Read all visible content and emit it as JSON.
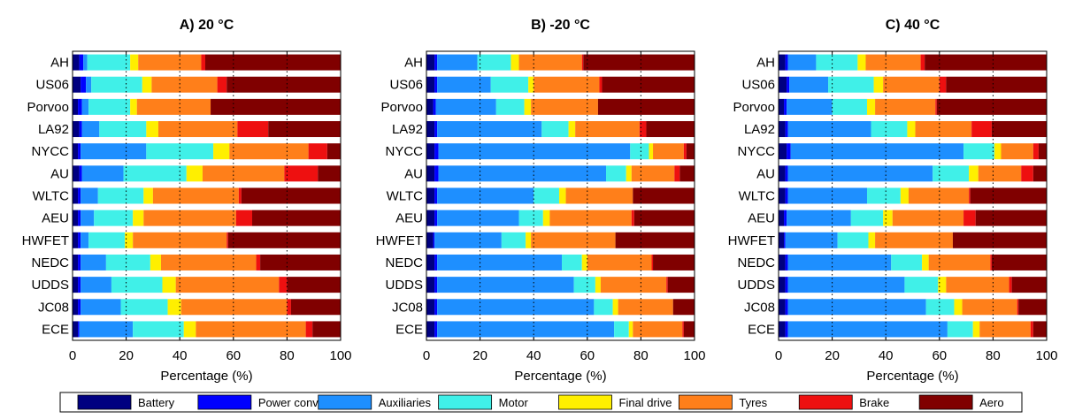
{
  "chart_data": {
    "type": "bar",
    "orientation": "horizontal",
    "stacked": true,
    "xlim": [
      0,
      100
    ],
    "xticks": [
      0,
      20,
      40,
      60,
      80,
      100
    ],
    "xgrid": "dotted",
    "xlabel": "Percentage (%)",
    "categories": [
      "AH",
      "US06",
      "Porvoo",
      "LA92",
      "NYCC",
      "AU",
      "WLTC",
      "AEU",
      "HWFET",
      "NEDC",
      "UDDS",
      "JC08",
      "ECE"
    ],
    "legend": {
      "placement": "bottom",
      "entries": [
        {
          "name": "Battery",
          "color": "#000080"
        },
        {
          "name": "Power converter",
          "color": "#0000ff"
        },
        {
          "name": "Auxiliaries",
          "color": "#1e8fff"
        },
        {
          "name": "Motor",
          "color": "#40f0e8"
        },
        {
          "name": "Final drive",
          "color": "#ffef00"
        },
        {
          "name": "Tyres",
          "color": "#ff7f1a"
        },
        {
          "name": "Brake",
          "color": "#ee1010"
        },
        {
          "name": "Aero",
          "color": "#800000"
        }
      ]
    },
    "panels": [
      {
        "title": "A) 20 °C",
        "values": [
          [
            2.5,
            1.5,
            1.5,
            16,
            3,
            23.5,
            1.5,
            50.5
          ],
          [
            3,
            2,
            2,
            19,
            3.5,
            24.5,
            3.5,
            42.5
          ],
          [
            2,
            1.5,
            2.5,
            15.5,
            2.5,
            27.5,
            0,
            48.5
          ],
          [
            2.5,
            1,
            6.5,
            17.5,
            4.5,
            29.5,
            11.5,
            27
          ],
          [
            2,
            1,
            24.5,
            25,
            6,
            29.5,
            7,
            5
          ],
          [
            2.5,
            1,
            15.5,
            23.5,
            6,
            30.5,
            12.5,
            8.5
          ],
          [
            2,
            1,
            6.5,
            17,
            3.5,
            32,
            1,
            37
          ],
          [
            2,
            1,
            5,
            14.5,
            4,
            34.5,
            6,
            33
          ],
          [
            2,
            1,
            3,
            13.5,
            3,
            35,
            0.5,
            42
          ],
          [
            2,
            1,
            9.5,
            16.5,
            4,
            35.5,
            1.5,
            30
          ],
          [
            2,
            1,
            11.5,
            19,
            5,
            38.5,
            3,
            20
          ],
          [
            2,
            1,
            15,
            17.5,
            5,
            39.5,
            1.5,
            18.5
          ],
          [
            2,
            0.5,
            20,
            19,
            4.5,
            41,
            2.5,
            10.5
          ]
        ]
      },
      {
        "title": "B) -20 °C",
        "values": [
          [
            3,
            1,
            15,
            12.5,
            3,
            23.5,
            0.5,
            41.5
          ],
          [
            3,
            1,
            20,
            14,
            2,
            24.5,
            1,
            34.5
          ],
          [
            2.5,
            1,
            22.5,
            10.5,
            2.5,
            25,
            0,
            36
          ],
          [
            3,
            1,
            39,
            10,
            2.5,
            24,
            2.5,
            18
          ],
          [
            3,
            1.5,
            71.5,
            7,
            1.5,
            11.5,
            1,
            3
          ],
          [
            3,
            1.5,
            62.5,
            7.5,
            2,
            16,
            2,
            5.5
          ],
          [
            3,
            1,
            36,
            9.5,
            2.5,
            25,
            0,
            23
          ],
          [
            3,
            1,
            30.5,
            9,
            2.5,
            30.5,
            1,
            22.5
          ],
          [
            2.5,
            0.5,
            25,
            9,
            2,
            31.5,
            0,
            29.5
          ],
          [
            3,
            1,
            46.5,
            7.5,
            2,
            24,
            0.5,
            15.5
          ],
          [
            3,
            1,
            51,
            8,
            2,
            24.5,
            0.5,
            10
          ],
          [
            3,
            1,
            58.5,
            7,
            2,
            20.5,
            0,
            8
          ],
          [
            3,
            1,
            66,
            5.5,
            1.5,
            18.5,
            0.5,
            4
          ]
        ]
      },
      {
        "title": "C) 40 °C",
        "values": [
          [
            2.5,
            1,
            10.5,
            15.5,
            3,
            20.5,
            1.5,
            45.5
          ],
          [
            3,
            1,
            14.5,
            17,
            3.5,
            21,
            2.5,
            37.5
          ],
          [
            2,
            1,
            17,
            13,
            3,
            22.5,
            0.5,
            41
          ],
          [
            2.5,
            1,
            31,
            13.5,
            3,
            21,
            7.5,
            20.5
          ],
          [
            3,
            1.5,
            64.5,
            11.5,
            2.5,
            12,
            2,
            3
          ],
          [
            2.5,
            1,
            54,
            13.5,
            3.5,
            16,
            4.5,
            5
          ],
          [
            2.5,
            1,
            29.5,
            12.5,
            3,
            22.5,
            0.5,
            28.5
          ],
          [
            2,
            1,
            24,
            12,
            3.5,
            26.5,
            4.5,
            26.5
          ],
          [
            2,
            0.5,
            19.5,
            11.5,
            2.5,
            29,
            0,
            35
          ],
          [
            2.5,
            1,
            38.5,
            11.5,
            2.5,
            23,
            0.5,
            20.5
          ],
          [
            2.5,
            1,
            43.5,
            12.5,
            3,
            23.5,
            1,
            13
          ],
          [
            2.5,
            1,
            51.5,
            10.5,
            3,
            20.5,
            0.5,
            10.5
          ],
          [
            2.5,
            1,
            59.5,
            9.5,
            2.5,
            19,
            1,
            5
          ]
        ]
      }
    ]
  }
}
